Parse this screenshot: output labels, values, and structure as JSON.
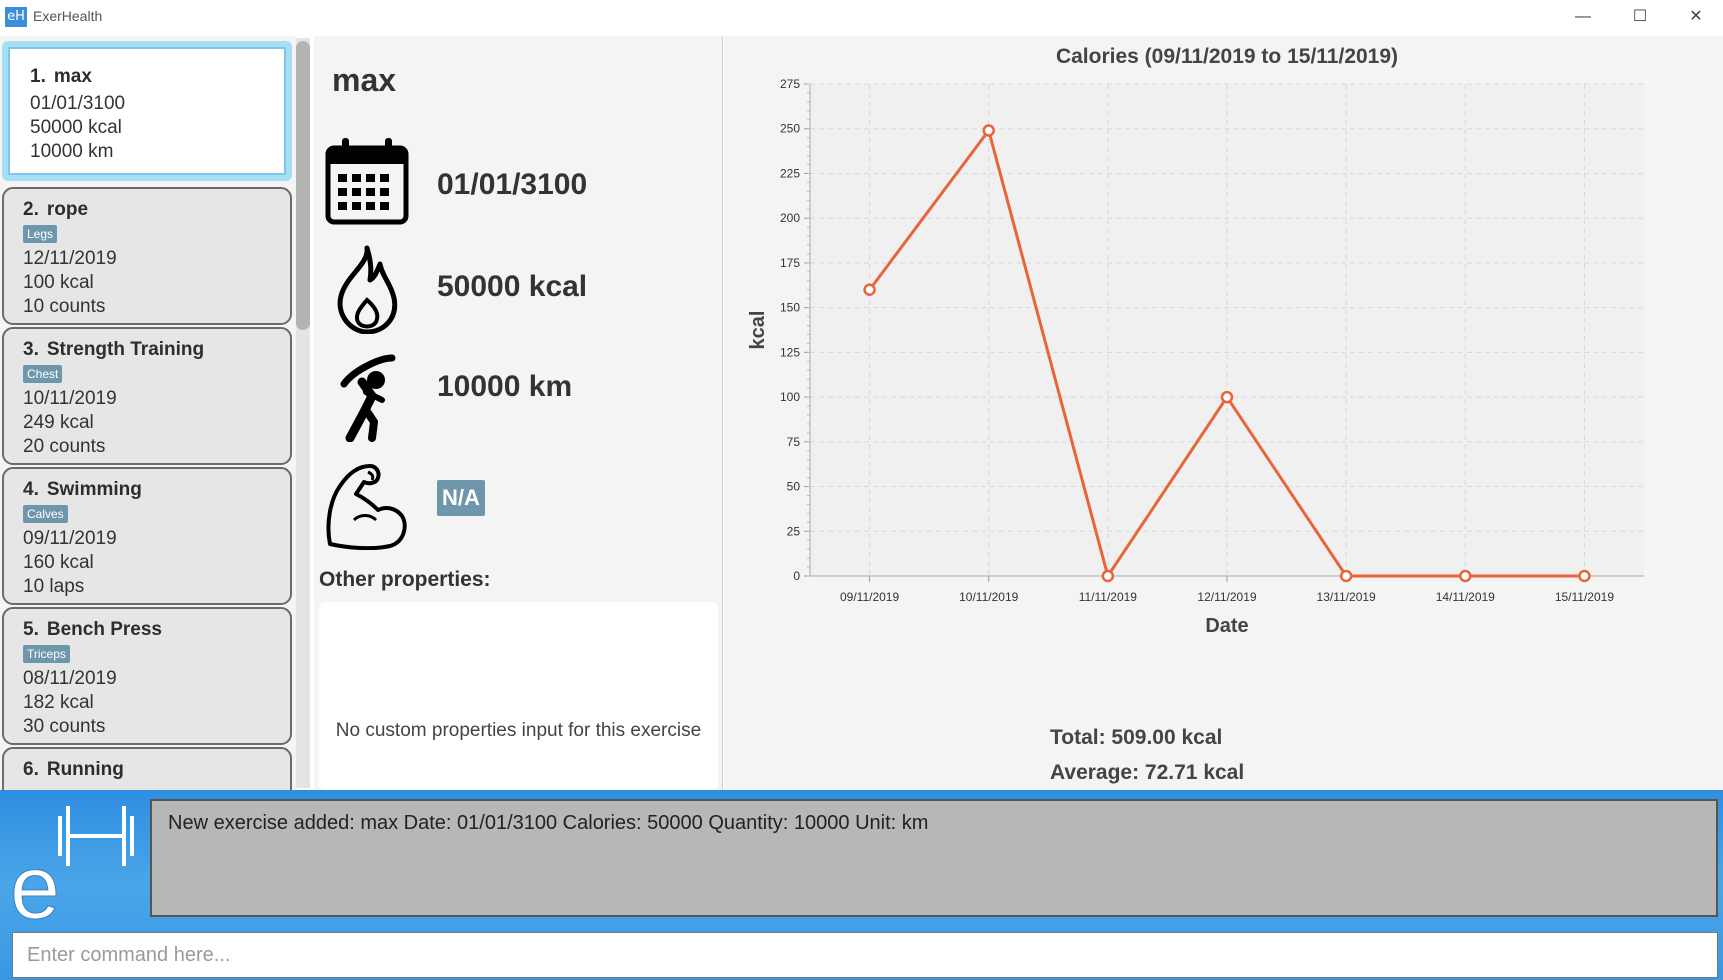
{
  "window": {
    "title": "ExerHealth",
    "icon_text": "eH",
    "minimize": "—",
    "maximize": "☐",
    "close": "✕"
  },
  "exercise_list": [
    {
      "index": "1.",
      "name": "max",
      "tag": "",
      "date": "01/01/3100",
      "calories": "50000 kcal",
      "quantity": "10000 km"
    },
    {
      "index": "2.",
      "name": "rope",
      "tag": "Legs",
      "date": "12/11/2019",
      "calories": "100 kcal",
      "quantity": "10 counts"
    },
    {
      "index": "3.",
      "name": "Strength Training",
      "tag": "Chest",
      "date": "10/11/2019",
      "calories": "249 kcal",
      "quantity": "20 counts"
    },
    {
      "index": "4.",
      "name": "Swimming",
      "tag": "Calves",
      "date": "09/11/2019",
      "calories": "160 kcal",
      "quantity": "10 laps"
    },
    {
      "index": "5.",
      "name": "Bench Press",
      "tag": "Triceps",
      "date": "08/11/2019",
      "calories": "182 kcal",
      "quantity": "30 counts"
    },
    {
      "index": "6.",
      "name": "Running",
      "tag": "",
      "date": "",
      "calories": "",
      "quantity": ""
    }
  ],
  "detail": {
    "name": "max",
    "date": "01/01/3100",
    "calories": "50000 kcal",
    "quantity": "10000 km",
    "muscle": "N/A",
    "other_label": "Other properties:",
    "other_text": "No custom properties input for this exercise",
    "icons": [
      "calendar-icon",
      "fire-icon",
      "stretch-icon",
      "muscle-icon"
    ]
  },
  "chart_data": {
    "type": "line",
    "title": "Calories (09/11/2019 to 15/11/2019)",
    "xlabel": "Date",
    "ylabel": "kcal",
    "categories": [
      "09/11/2019",
      "10/11/2019",
      "11/11/2019",
      "12/11/2019",
      "13/11/2019",
      "14/11/2019",
      "15/11/2019"
    ],
    "values": [
      160,
      249,
      0,
      100,
      0,
      0,
      0
    ],
    "ylim": [
      0,
      275
    ],
    "yticks": [
      0,
      25,
      50,
      75,
      100,
      125,
      150,
      175,
      200,
      225,
      250,
      275
    ],
    "grid": true,
    "color": "#e8643a"
  },
  "summary": {
    "total": "Total: 509.00 kcal",
    "average": "Average: 72.71 kcal"
  },
  "result": {
    "text": "New exercise added: max Date: 01/01/3100 Calories: 50000 Quantity: 10000 Unit: km"
  },
  "command": {
    "placeholder": "Enter command here..."
  },
  "colors": {
    "accent": "#3b8fd6",
    "tag": "#6e97ab",
    "line": "#e8643a",
    "selected_border": "#a6def5"
  }
}
